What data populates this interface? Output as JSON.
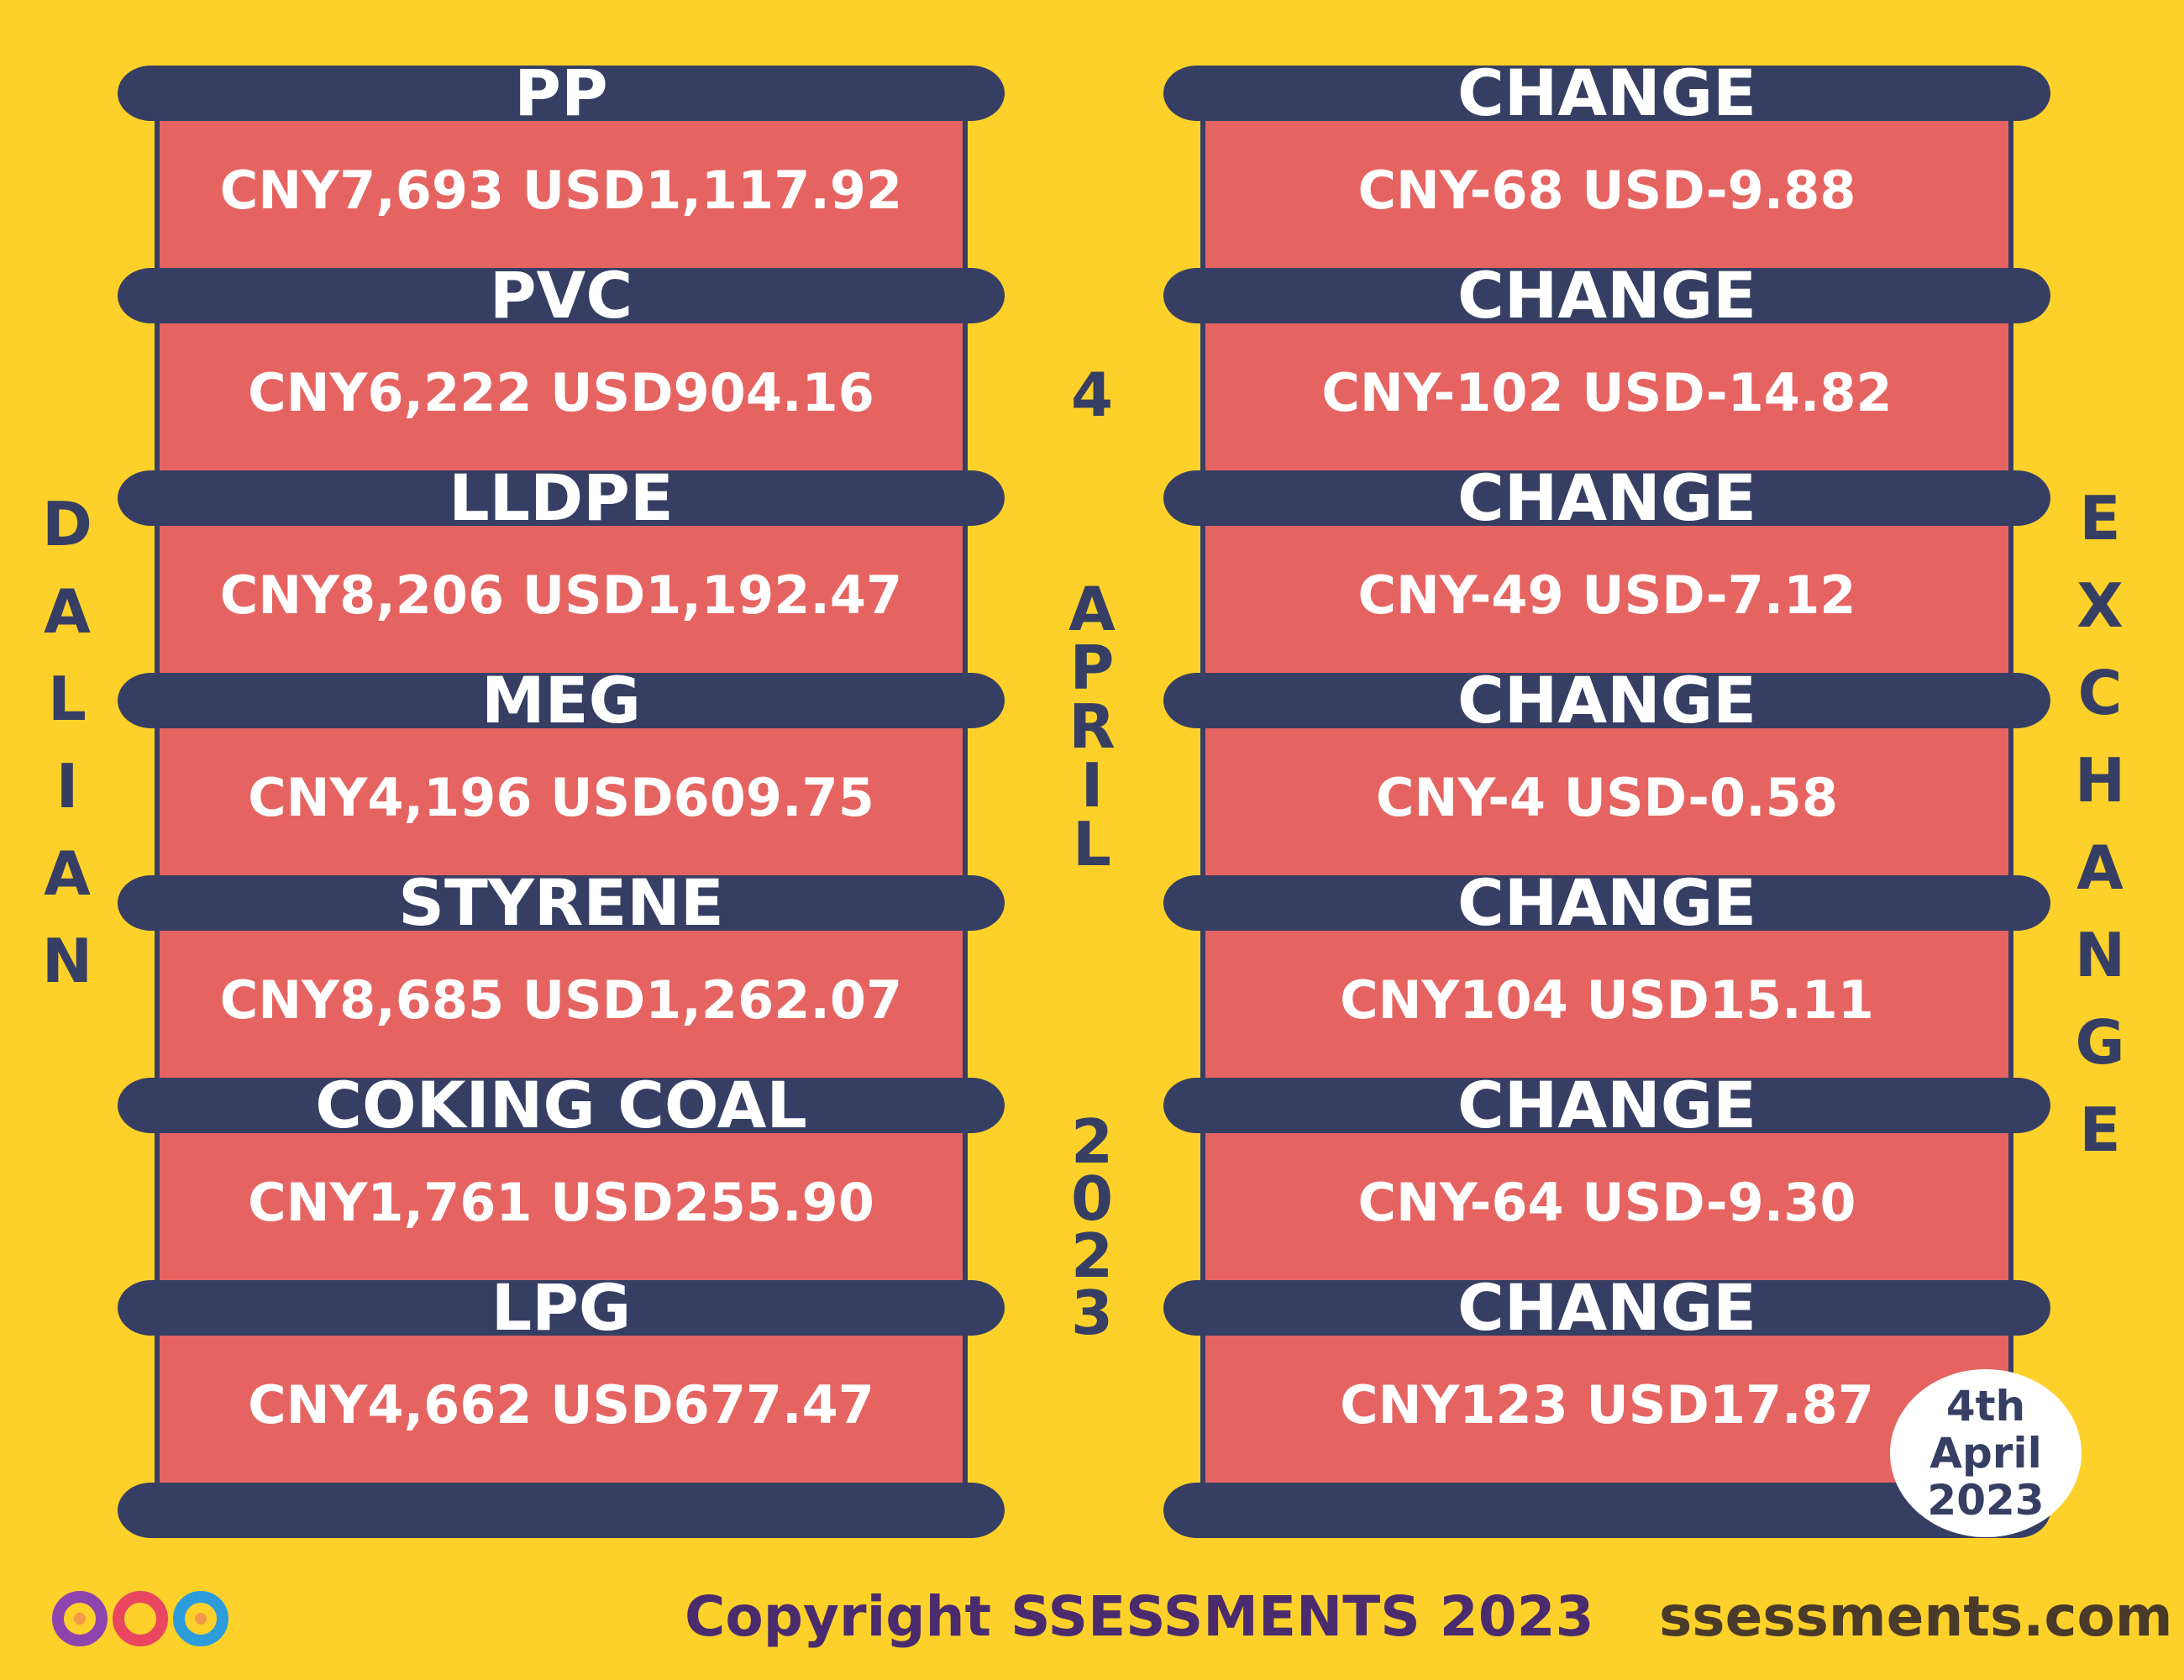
{
  "left_title": "DALIAN",
  "right_title": "EXCHANGE",
  "date_vertical": {
    "day": "4",
    "month": "APRIL",
    "year": "2023"
  },
  "commodities": [
    {
      "name": "PP",
      "price": "CNY7,693  USD1,117.92",
      "change_label": "CHANGE",
      "change": "CNY-68  USD-9.88"
    },
    {
      "name": "PVC",
      "price": "CNY6,222  USD904.16",
      "change_label": "CHANGE",
      "change": "CNY-102  USD-14.82"
    },
    {
      "name": "LLDPE",
      "price": "CNY8,206  USD1,192.47",
      "change_label": "CHANGE",
      "change": "CNY-49  USD-7.12"
    },
    {
      "name": "MEG",
      "price": "CNY4,196  USD609.75",
      "change_label": "CHANGE",
      "change": "CNY-4  USD-0.58"
    },
    {
      "name": "STYRENE",
      "price": "CNY8,685  USD1,262.07",
      "change_label": "CHANGE",
      "change": "CNY104  USD15.11"
    },
    {
      "name": "COKING COAL",
      "price": "CNY1,761  USD255.90",
      "change_label": "CHANGE",
      "change": "CNY-64  USD-9.30"
    },
    {
      "name": "LPG",
      "price": "CNY4,662  USD677.47",
      "change_label": "CHANGE",
      "change": "CNY123  USD17.87"
    }
  ],
  "date_badge": {
    "line1": "4th",
    "line2": "April",
    "line3": "2023"
  },
  "footer": {
    "copyright": "Copyright SSESSMENTS 2023",
    "website": "ssessments.com",
    "logo_icon": "infinity-logo-icon"
  },
  "colors": {
    "background": "#FDD12A",
    "bar": "#363F63",
    "panel": "#E56461",
    "text": "#FFFFFF"
  }
}
